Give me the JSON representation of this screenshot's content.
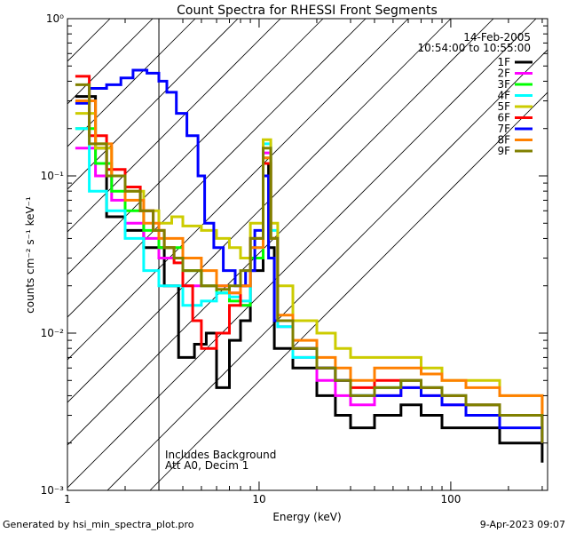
{
  "chart_data": {
    "type": "line",
    "title": "Count Spectra for RHESSI Front Segments",
    "xlabel": "Energy (keV)",
    "ylabel": "counts cm⁻² s⁻¹ keV⁻¹",
    "xscale": "log",
    "yscale": "log",
    "xlim": [
      1.0,
      320.0
    ],
    "ylim": [
      0.001,
      1.0
    ],
    "x_tick_labels": [
      "1",
      "10",
      "100"
    ],
    "y_tick_labels": [
      "10⁻³",
      "10⁻²",
      "10⁻¹",
      "10⁰"
    ],
    "date": "14-Feb-2005",
    "time_range": "10:54:00 to 10:55:00",
    "annotation_line1": "Includes Background",
    "annotation_line2": "Att A0, Decim 1",
    "hatched_region_max_kev": 3.0,
    "series": [
      {
        "name": "1F",
        "color": "#000000",
        "points": [
          [
            1.1,
            0.32
          ],
          [
            1.4,
            0.15
          ],
          [
            1.6,
            0.055
          ],
          [
            2.0,
            0.045
          ],
          [
            2.5,
            0.035
          ],
          [
            3.2,
            0.02
          ],
          [
            3.8,
            0.007
          ],
          [
            4.6,
            0.0085
          ],
          [
            5.3,
            0.01
          ],
          [
            6.0,
            0.0045
          ],
          [
            7.0,
            0.009
          ],
          [
            8.0,
            0.012
          ],
          [
            9.0,
            0.025
          ],
          [
            10.5,
            0.12
          ],
          [
            11.2,
            0.035
          ],
          [
            12.0,
            0.008
          ],
          [
            15,
            0.006
          ],
          [
            20,
            0.004
          ],
          [
            25,
            0.003
          ],
          [
            30,
            0.0025
          ],
          [
            40,
            0.003
          ],
          [
            55,
            0.0035
          ],
          [
            70,
            0.003
          ],
          [
            90,
            0.0025
          ],
          [
            120,
            0.0025
          ],
          [
            180,
            0.002
          ],
          [
            300,
            0.0015
          ]
        ]
      },
      {
        "name": "2F",
        "color": "#ff00ff",
        "points": [
          [
            1.1,
            0.15
          ],
          [
            1.4,
            0.1
          ],
          [
            1.7,
            0.07
          ],
          [
            2.0,
            0.05
          ],
          [
            2.5,
            0.04
          ],
          [
            3.0,
            0.03
          ],
          [
            4.0,
            0.02
          ],
          [
            5.0,
            0.02
          ],
          [
            6.0,
            0.02
          ],
          [
            7.0,
            0.018
          ],
          [
            8.0,
            0.015
          ],
          [
            9.0,
            0.03
          ],
          [
            10.5,
            0.14
          ],
          [
            11.5,
            0.04
          ],
          [
            12.5,
            0.011
          ],
          [
            15,
            0.007
          ],
          [
            20,
            0.005
          ],
          [
            25,
            0.004
          ],
          [
            30,
            0.0035
          ],
          [
            40,
            0.004
          ],
          [
            55,
            0.0045
          ],
          [
            70,
            0.004
          ],
          [
            90,
            0.0035
          ],
          [
            120,
            0.003
          ],
          [
            180,
            0.003
          ],
          [
            300,
            0.002
          ]
        ]
      },
      {
        "name": "3F",
        "color": "#00ff00",
        "points": [
          [
            1.1,
            0.2
          ],
          [
            1.4,
            0.12
          ],
          [
            1.7,
            0.08
          ],
          [
            2.0,
            0.06
          ],
          [
            2.5,
            0.045
          ],
          [
            3.0,
            0.035
          ],
          [
            4.0,
            0.025
          ],
          [
            5.0,
            0.02
          ],
          [
            6.0,
            0.018
          ],
          [
            7.0,
            0.016
          ],
          [
            8.0,
            0.015
          ],
          [
            9.0,
            0.03
          ],
          [
            10.5,
            0.13
          ],
          [
            11.5,
            0.04
          ],
          [
            12.5,
            0.012
          ],
          [
            15,
            0.008
          ],
          [
            20,
            0.006
          ],
          [
            25,
            0.005
          ],
          [
            30,
            0.004
          ],
          [
            40,
            0.0045
          ],
          [
            55,
            0.005
          ],
          [
            70,
            0.0045
          ],
          [
            90,
            0.004
          ],
          [
            120,
            0.0035
          ],
          [
            180,
            0.003
          ],
          [
            300,
            0.0022
          ]
        ]
      },
      {
        "name": "4F",
        "color": "#00ffff",
        "points": [
          [
            1.1,
            0.2
          ],
          [
            1.3,
            0.08
          ],
          [
            1.6,
            0.06
          ],
          [
            2.0,
            0.04
          ],
          [
            2.5,
            0.025
          ],
          [
            3.0,
            0.02
          ],
          [
            4.0,
            0.015
          ],
          [
            5.0,
            0.016
          ],
          [
            6.0,
            0.018
          ],
          [
            7.0,
            0.017
          ],
          [
            8.0,
            0.016
          ],
          [
            9.0,
            0.035
          ],
          [
            10.5,
            0.16
          ],
          [
            11.5,
            0.045
          ],
          [
            12.5,
            0.011
          ],
          [
            15,
            0.007
          ],
          [
            20,
            0.006
          ],
          [
            25,
            0.005
          ],
          [
            30,
            0.004
          ],
          [
            40,
            0.0045
          ],
          [
            55,
            0.005
          ],
          [
            70,
            0.0045
          ],
          [
            90,
            0.004
          ],
          [
            120,
            0.0035
          ],
          [
            180,
            0.003
          ],
          [
            300,
            0.002
          ]
        ]
      },
      {
        "name": "5F",
        "color": "#cccc00",
        "points": [
          [
            1.1,
            0.25
          ],
          [
            1.4,
            0.15
          ],
          [
            1.7,
            0.1
          ],
          [
            2.0,
            0.08
          ],
          [
            2.5,
            0.06
          ],
          [
            3.0,
            0.05
          ],
          [
            3.5,
            0.055
          ],
          [
            4.0,
            0.048
          ],
          [
            5.0,
            0.045
          ],
          [
            6.0,
            0.04
          ],
          [
            7.0,
            0.035
          ],
          [
            8.0,
            0.03
          ],
          [
            9.0,
            0.05
          ],
          [
            10.5,
            0.17
          ],
          [
            11.5,
            0.05
          ],
          [
            12.5,
            0.02
          ],
          [
            15,
            0.012
          ],
          [
            20,
            0.01
          ],
          [
            25,
            0.008
          ],
          [
            30,
            0.007
          ],
          [
            40,
            0.007
          ],
          [
            55,
            0.007
          ],
          [
            70,
            0.006
          ],
          [
            90,
            0.005
          ],
          [
            120,
            0.005
          ],
          [
            180,
            0.004
          ],
          [
            300,
            0.003
          ]
        ]
      },
      {
        "name": "6F",
        "color": "#ff0000",
        "points": [
          [
            1.1,
            0.43
          ],
          [
            1.3,
            0.18
          ],
          [
            1.6,
            0.11
          ],
          [
            2.0,
            0.085
          ],
          [
            2.4,
            0.06
          ],
          [
            2.8,
            0.045
          ],
          [
            3.2,
            0.035
          ],
          [
            3.6,
            0.028
          ],
          [
            4.0,
            0.02
          ],
          [
            4.5,
            0.012
          ],
          [
            5.0,
            0.008
          ],
          [
            6.0,
            0.01
          ],
          [
            7.0,
            0.015
          ],
          [
            8.0,
            0.02
          ],
          [
            9.0,
            0.04
          ],
          [
            10.5,
            0.12
          ],
          [
            11.5,
            0.04
          ],
          [
            12.5,
            0.012
          ],
          [
            15,
            0.008
          ],
          [
            20,
            0.006
          ],
          [
            25,
            0.005
          ],
          [
            30,
            0.0045
          ],
          [
            40,
            0.005
          ],
          [
            55,
            0.005
          ],
          [
            70,
            0.0045
          ],
          [
            90,
            0.004
          ],
          [
            120,
            0.0035
          ],
          [
            180,
            0.003
          ],
          [
            300,
            0.002
          ]
        ]
      },
      {
        "name": "7F",
        "color": "#0000ff",
        "points": [
          [
            1.1,
            0.29
          ],
          [
            1.3,
            0.36
          ],
          [
            1.6,
            0.38
          ],
          [
            1.9,
            0.42
          ],
          [
            2.2,
            0.47
          ],
          [
            2.6,
            0.45
          ],
          [
            3.0,
            0.4
          ],
          [
            3.3,
            0.34
          ],
          [
            3.7,
            0.25
          ],
          [
            4.2,
            0.18
          ],
          [
            4.8,
            0.1
          ],
          [
            5.2,
            0.05
          ],
          [
            5.8,
            0.035
          ],
          [
            6.5,
            0.025
          ],
          [
            7.5,
            0.02
          ],
          [
            8.5,
            0.025
          ],
          [
            9.5,
            0.045
          ],
          [
            10.5,
            0.1
          ],
          [
            11.2,
            0.03
          ],
          [
            12.0,
            0.012
          ],
          [
            15,
            0.008
          ],
          [
            20,
            0.006
          ],
          [
            25,
            0.005
          ],
          [
            30,
            0.004
          ],
          [
            40,
            0.004
          ],
          [
            55,
            0.0045
          ],
          [
            70,
            0.004
          ],
          [
            90,
            0.0035
          ],
          [
            120,
            0.003
          ],
          [
            180,
            0.0025
          ],
          [
            300,
            0.002
          ]
        ]
      },
      {
        "name": "8F",
        "color": "#ff8000",
        "points": [
          [
            1.1,
            0.3
          ],
          [
            1.4,
            0.16
          ],
          [
            1.7,
            0.1
          ],
          [
            2.0,
            0.07
          ],
          [
            2.5,
            0.05
          ],
          [
            3.0,
            0.04
          ],
          [
            4.0,
            0.03
          ],
          [
            5.0,
            0.025
          ],
          [
            6.0,
            0.02
          ],
          [
            7.0,
            0.018
          ],
          [
            8.0,
            0.02
          ],
          [
            9.0,
            0.035
          ],
          [
            10.5,
            0.13
          ],
          [
            11.5,
            0.04
          ],
          [
            12.5,
            0.013
          ],
          [
            15,
            0.009
          ],
          [
            20,
            0.007
          ],
          [
            25,
            0.006
          ],
          [
            30,
            0.005
          ],
          [
            40,
            0.006
          ],
          [
            55,
            0.006
          ],
          [
            70,
            0.0055
          ],
          [
            90,
            0.005
          ],
          [
            120,
            0.0045
          ],
          [
            180,
            0.004
          ],
          [
            300,
            0.003
          ]
        ]
      },
      {
        "name": "9F",
        "color": "#808000",
        "points": [
          [
            1.1,
            0.38
          ],
          [
            1.3,
            0.16
          ],
          [
            1.6,
            0.1
          ],
          [
            2.0,
            0.08
          ],
          [
            2.4,
            0.06
          ],
          [
            2.8,
            0.045
          ],
          [
            3.2,
            0.035
          ],
          [
            3.6,
            0.03
          ],
          [
            4.0,
            0.025
          ],
          [
            5.0,
            0.02
          ],
          [
            6.0,
            0.019
          ],
          [
            7.0,
            0.02
          ],
          [
            8.0,
            0.025
          ],
          [
            9.0,
            0.04
          ],
          [
            10.5,
            0.15
          ],
          [
            11.5,
            0.04
          ],
          [
            12.5,
            0.012
          ],
          [
            15,
            0.008
          ],
          [
            20,
            0.006
          ],
          [
            25,
            0.005
          ],
          [
            30,
            0.004
          ],
          [
            40,
            0.0045
          ],
          [
            55,
            0.005
          ],
          [
            70,
            0.0045
          ],
          [
            90,
            0.004
          ],
          [
            120,
            0.0035
          ],
          [
            180,
            0.003
          ],
          [
            300,
            0.002
          ]
        ]
      }
    ]
  },
  "footer": {
    "generated_by": "Generated by hsi_min_spectra_plot.pro",
    "timestamp": "9-Apr-2023 09:07"
  }
}
